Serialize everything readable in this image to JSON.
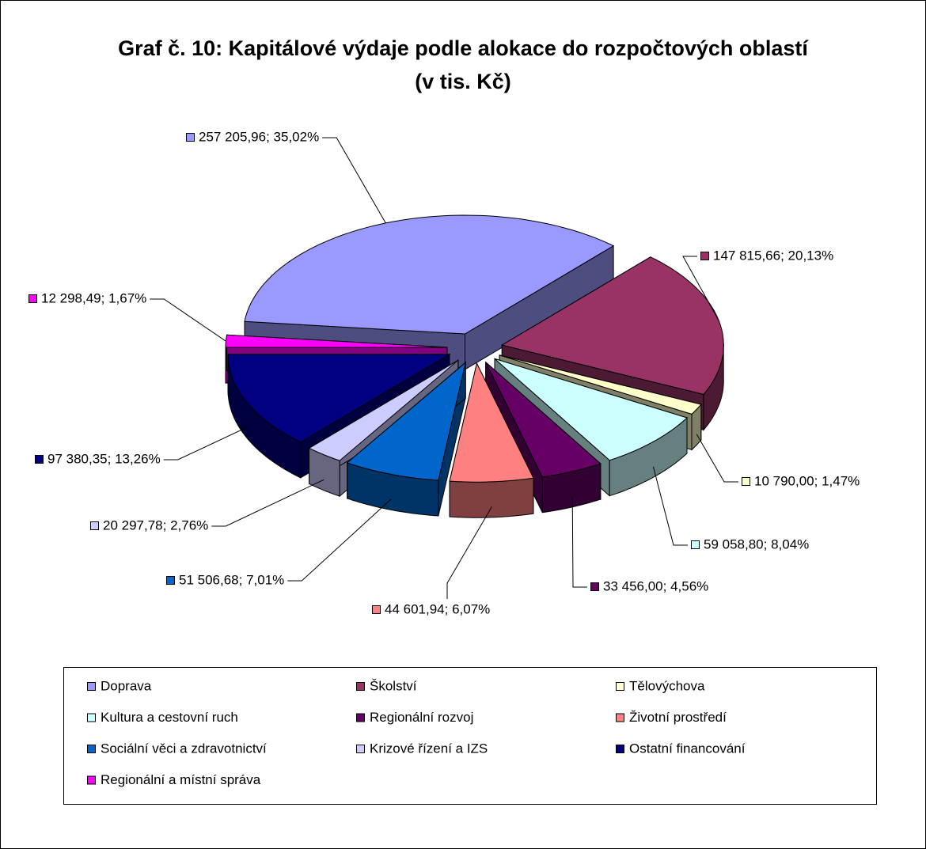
{
  "chart_data": {
    "type": "pie3d",
    "title": "Graf č. 10: Kapitálové výdaje podle alokace do rozpočtových oblastí (v tis. Kč)",
    "categories": [
      "Doprava",
      "Školství",
      "Tělovýchova",
      "Kultura a cestovní ruch",
      "Regionální rozvoj",
      "Životní prostředí",
      "Sociální věci a zdravotnictví",
      "Krizové řízení a IZS",
      "Ostatní financování",
      "Regionální a místní správa"
    ],
    "values": [
      257205.96,
      147815.66,
      10790.0,
      59058.8,
      33456.0,
      44601.94,
      51506.68,
      20297.78,
      97380.35,
      12298.49
    ],
    "value_labels": [
      "257 205,96; 35,02%",
      "147 815,66; 20,13%",
      "10 790,00; 1,47%",
      "59 058,80; 8,04%",
      "33 456,00; 4,56%",
      "44 601,94; 6,07%",
      "51 506,68; 7,01%",
      "20 297,78; 2,76%",
      "97 380,35; 13,26%",
      "12 298,49; 1,67%"
    ],
    "colors": [
      "#9999ff",
      "#993366",
      "#ffffcc",
      "#ccffff",
      "#660066",
      "#ff8080",
      "#0066cc",
      "#ccccff",
      "#000080",
      "#ff00ff"
    ],
    "legend": "bottom"
  }
}
